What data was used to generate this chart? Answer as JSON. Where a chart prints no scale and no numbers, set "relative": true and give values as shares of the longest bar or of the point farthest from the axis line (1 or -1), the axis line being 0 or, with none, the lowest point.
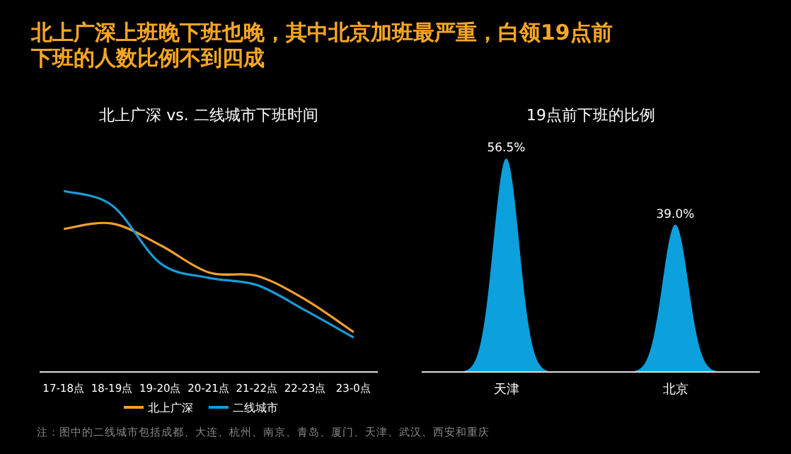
{
  "chart_data": [
    {
      "type": "line",
      "title": "北上广深上班晚下班也晚，其中北京加班最严重，白领19点前下班的人数比例不到四成",
      "subtitle": "北上广深 vs. 二线城市下班时间",
      "categories": [
        "17-18点",
        "18-19点",
        "19-20点",
        "20-21点",
        "21-22点",
        "22-23点",
        "23-0点"
      ],
      "relative": true,
      "legend": "bottom",
      "series": [
        {
          "name": "北上广深",
          "color": "#f0a030",
          "values": [
            0.79,
            0.82,
            0.7,
            0.55,
            0.53,
            0.4,
            0.22
          ]
        },
        {
          "name": "二线城市",
          "color": "#1a9ad6",
          "values": [
            1,
            0.92,
            0.6,
            0.52,
            0.48,
            0.34,
            0.19
          ]
        }
      ],
      "annotations": [
        "注：图中的二线城市包括成都、大连、杭州、南京、青岛、厦门、天津、武汉、西安和重庆"
      ]
    },
    {
      "type": "other",
      "title": "19点前下班的比例",
      "categories": [
        "天津",
        "北京"
      ],
      "values": [
        56.5,
        39.0
      ],
      "color": "#0ca0dc",
      "value_labels": [
        "56.5%",
        "39.0%"
      ]
    }
  ]
}
